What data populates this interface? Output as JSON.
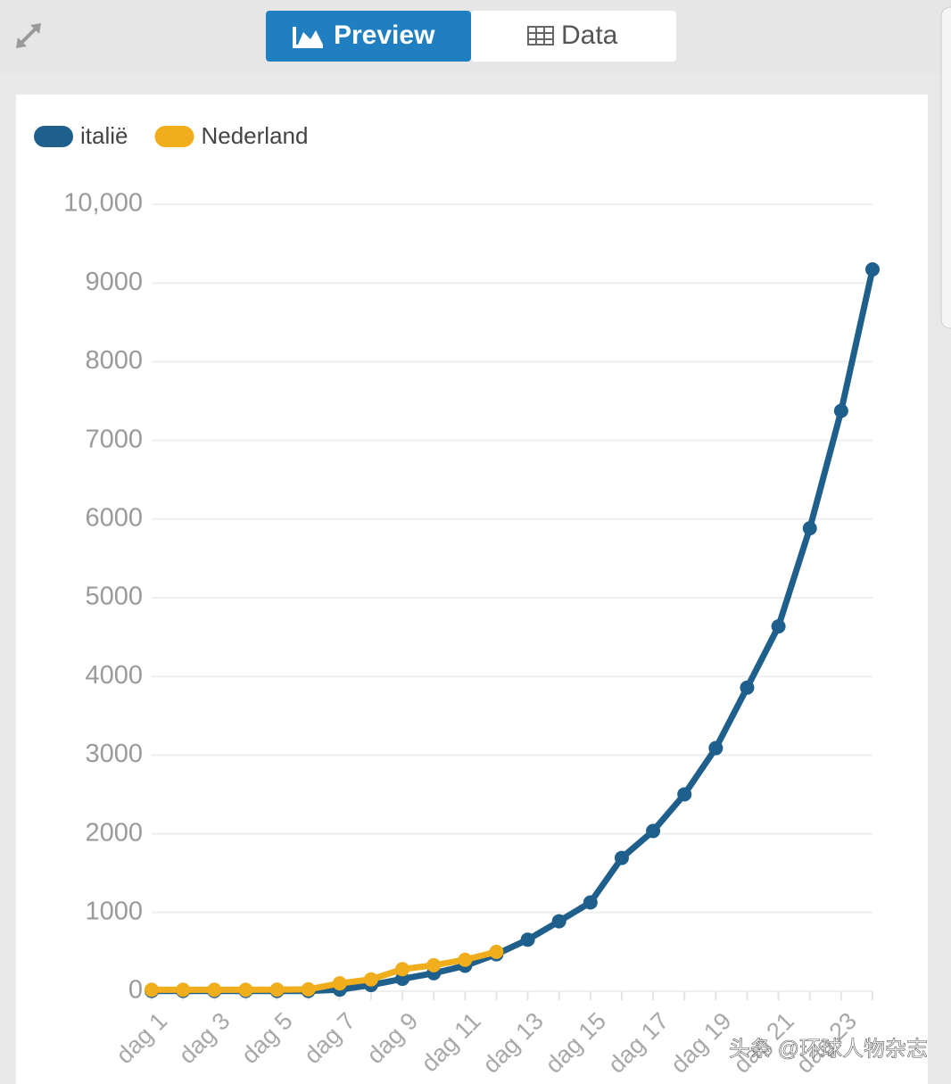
{
  "tabs": [
    "Preview",
    "Data"
  ],
  "watermark": "头条 @环球人物杂志",
  "chart_data": {
    "type": "line",
    "categories": [
      "dag 1",
      null,
      "dag 3",
      null,
      "dag 5",
      null,
      "dag 7",
      null,
      "dag 9",
      null,
      "dag 11",
      null,
      "dag 13",
      null,
      "dag 15",
      null,
      "dag 17",
      null,
      "dag 19",
      null,
      "dag 21",
      null,
      "dag 23",
      null
    ],
    "series": [
      {
        "name": "italië",
        "color": "#1f5f8c",
        "values": [
          3,
          3,
          3,
          3,
          3,
          3,
          20,
          79,
          157,
          229,
          323,
          470,
          655,
          889,
          1128,
          1694,
          2036,
          2502,
          3089,
          3858,
          4636,
          5883,
          7375,
          9172
        ]
      },
      {
        "name": "Nederland",
        "color": "#f0ae1c",
        "values": [
          18,
          18,
          18,
          18,
          20,
          24,
          100,
          150,
          280,
          330,
          400,
          500,
          null,
          null,
          null,
          null,
          null,
          null,
          null,
          null,
          null,
          null,
          null,
          null
        ]
      }
    ],
    "ylim": [
      0,
      10000
    ],
    "yticks": [
      0,
      1000,
      2000,
      3000,
      4000,
      5000,
      6000,
      7000,
      8000,
      9000,
      {
        "value": 10000,
        "label": "10,000"
      }
    ],
    "grid": true,
    "legend": "top-left"
  }
}
